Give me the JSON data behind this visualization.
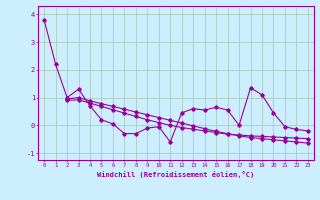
{
  "xlabel": "Windchill (Refroidissement éolien,°C)",
  "bg_color": "#cceeff",
  "grid_color": "#aaccbb",
  "line_color": "#990099",
  "xlim": [
    -0.5,
    23.5
  ],
  "ylim": [
    -1.25,
    4.3
  ],
  "yticks": [
    -1,
    0,
    1,
    2,
    3,
    4
  ],
  "xticks": [
    0,
    1,
    2,
    3,
    4,
    5,
    6,
    7,
    8,
    9,
    10,
    11,
    12,
    13,
    14,
    15,
    16,
    17,
    18,
    19,
    20,
    21,
    22,
    23
  ],
  "series": [
    [
      3.8,
      2.2,
      1.0,
      1.3,
      0.7,
      0.2,
      0.05,
      -0.3,
      -0.3,
      -0.1,
      -0.05,
      -0.6,
      0.45,
      0.6,
      0.55,
      0.65,
      0.55,
      0.0,
      1.35,
      1.1,
      0.45,
      -0.05,
      -0.15,
      -0.2
    ],
    [
      null,
      null,
      0.9,
      0.92,
      0.8,
      0.68,
      0.56,
      0.44,
      0.32,
      0.2,
      0.1,
      0.0,
      -0.08,
      -0.14,
      -0.2,
      -0.26,
      -0.32,
      -0.35,
      -0.38,
      -0.4,
      -0.42,
      -0.44,
      -0.46,
      -0.48
    ],
    [
      null,
      null,
      0.95,
      1.0,
      0.88,
      0.78,
      0.68,
      0.58,
      0.48,
      0.38,
      0.28,
      0.18,
      0.08,
      -0.02,
      -0.12,
      -0.22,
      -0.3,
      -0.38,
      -0.44,
      -0.48,
      -0.52,
      -0.56,
      -0.6,
      -0.64
    ]
  ]
}
